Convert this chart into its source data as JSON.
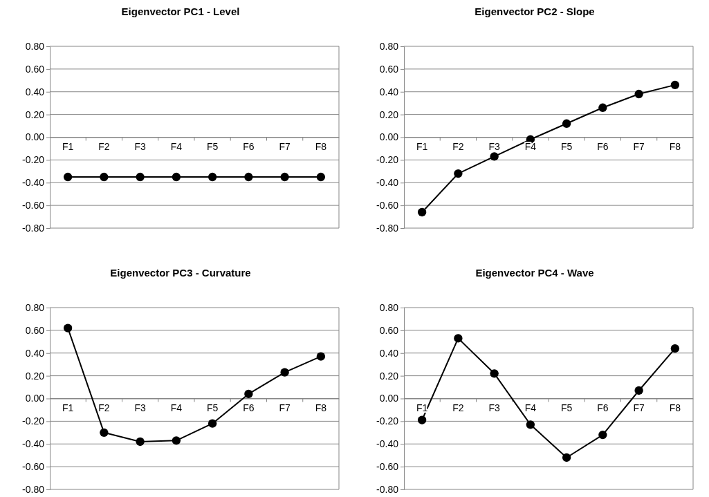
{
  "chart_data": [
    {
      "type": "line",
      "title": "Eigenvector PC1 - Level",
      "categories": [
        "F1",
        "F2",
        "F3",
        "F4",
        "F5",
        "F6",
        "F7",
        "F8"
      ],
      "series": [
        {
          "color": "#000000",
          "values": [
            -0.35,
            -0.35,
            -0.35,
            -0.35,
            -0.35,
            -0.35,
            -0.35,
            -0.35
          ]
        }
      ],
      "ylim": [
        -0.8,
        0.8
      ],
      "yticks": [
        {
          "value": -0.8,
          "label": "-0.80"
        },
        {
          "value": -0.6,
          "label": "-0.60"
        },
        {
          "value": -0.4,
          "label": "-0.40"
        },
        {
          "value": -0.2,
          "label": "-0.20"
        },
        {
          "value": 0,
          "label": "0.00"
        },
        {
          "value": 0.2,
          "label": "0.20"
        },
        {
          "value": 0.4,
          "label": "0.40"
        },
        {
          "value": 0.6,
          "label": "0.60"
        },
        {
          "value": 0.8,
          "label": "0.80"
        }
      ],
      "grid": "y",
      "marker": "circle",
      "line_style": "solid"
    },
    {
      "type": "line",
      "title": "Eigenvector PC2 - Slope",
      "categories": [
        "F1",
        "F2",
        "F3",
        "F4",
        "F5",
        "F6",
        "F7",
        "F8"
      ],
      "series": [
        {
          "color": "#000000",
          "values": [
            -0.66,
            -0.32,
            -0.17,
            -0.02,
            0.12,
            0.26,
            0.38,
            0.46
          ]
        }
      ],
      "ylim": [
        -0.8,
        0.8
      ],
      "yticks": [
        {
          "value": -0.8,
          "label": "-0.80"
        },
        {
          "value": -0.6,
          "label": "-0.60"
        },
        {
          "value": -0.4,
          "label": "-0.40"
        },
        {
          "value": -0.2,
          "label": "-0.20"
        },
        {
          "value": 0,
          "label": "0.00"
        },
        {
          "value": 0.2,
          "label": "0.20"
        },
        {
          "value": 0.4,
          "label": "0.40"
        },
        {
          "value": 0.6,
          "label": "0.60"
        },
        {
          "value": 0.8,
          "label": "0.80"
        }
      ],
      "grid": "y",
      "marker": "circle",
      "line_style": "solid"
    },
    {
      "type": "line",
      "title": "Eigenvector PC3 - Curvature",
      "categories": [
        "F1",
        "F2",
        "F3",
        "F4",
        "F5",
        "F6",
        "F7",
        "F8"
      ],
      "series": [
        {
          "color": "#000000",
          "values": [
            0.62,
            -0.3,
            -0.38,
            -0.37,
            -0.22,
            0.04,
            0.23,
            0.37
          ]
        }
      ],
      "ylim": [
        -0.8,
        0.8
      ],
      "yticks": [
        {
          "value": -0.8,
          "label": "-0.80"
        },
        {
          "value": -0.6,
          "label": "-0.60"
        },
        {
          "value": -0.4,
          "label": "-0.40"
        },
        {
          "value": -0.2,
          "label": "-0.20"
        },
        {
          "value": 0,
          "label": "0.00"
        },
        {
          "value": 0.2,
          "label": "0.20"
        },
        {
          "value": 0.4,
          "label": "0.40"
        },
        {
          "value": 0.6,
          "label": "0.60"
        },
        {
          "value": 0.8,
          "label": "0.80"
        }
      ],
      "grid": "y",
      "marker": "circle",
      "line_style": "solid"
    },
    {
      "type": "line",
      "title": "Eigenvector PC4 - Wave",
      "categories": [
        "F1",
        "F2",
        "F3",
        "F4",
        "F5",
        "F6",
        "F7",
        "F8"
      ],
      "series": [
        {
          "color": "#000000",
          "values": [
            -0.19,
            0.53,
            0.22,
            -0.23,
            -0.52,
            -0.32,
            0.07,
            0.44
          ]
        }
      ],
      "ylim": [
        -0.8,
        0.8
      ],
      "yticks": [
        {
          "value": -0.8,
          "label": "-0.80"
        },
        {
          "value": -0.6,
          "label": "-0.60"
        },
        {
          "value": -0.4,
          "label": "-0.40"
        },
        {
          "value": -0.2,
          "label": "-0.20"
        },
        {
          "value": 0,
          "label": "0.00"
        },
        {
          "value": 0.2,
          "label": "0.20"
        },
        {
          "value": 0.4,
          "label": "0.40"
        },
        {
          "value": 0.6,
          "label": "0.60"
        },
        {
          "value": 0.8,
          "label": "0.80"
        }
      ],
      "grid": "y",
      "marker": "circle",
      "line_style": "solid"
    }
  ]
}
